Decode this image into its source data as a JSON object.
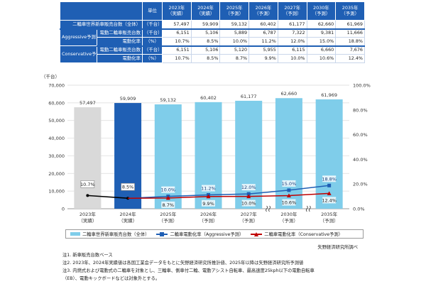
{
  "table": {
    "unit_header": "単位",
    "years": [
      "2023年\n（実績）",
      "2024年\n（実績）",
      "2025年\n（予測）",
      "2026年\n（予測）",
      "2027年\n（予測）",
      "2030年\n（予測）",
      "2035年\n（予測）"
    ],
    "rows": [
      {
        "label": "二輪車世界新車販売台数（全体）",
        "unit": "（千台）",
        "values": [
          "57,497",
          "59,909",
          "59,132",
          "60,402",
          "61,177",
          "62,660",
          "61,969"
        ]
      },
      {
        "group": "Aggressive予測",
        "label": "電動二輪車販売台数",
        "unit": "（千台）",
        "values": [
          "6,151",
          "5,106",
          "5,889",
          "6,787",
          "7,322",
          "9,381",
          "11,666"
        ]
      },
      {
        "group": "",
        "label": "電動化率",
        "unit": "（%）",
        "values": [
          "10.7%",
          "8.5%",
          "10.0%",
          "11.2%",
          "12.0%",
          "15.0%",
          "18.8%"
        ]
      },
      {
        "group": "Conservative予測",
        "label": "電動二輪車販売台数",
        "unit": "（千台）",
        "values": [
          "6,151",
          "5,106",
          "5,120",
          "5,955",
          "6,115",
          "6,660",
          "7,676"
        ]
      },
      {
        "group": "",
        "label": "電動化率",
        "unit": "（%）",
        "values": [
          "10.7%",
          "8.5%",
          "8.7%",
          "9.9%",
          "10.0%",
          "10.6%",
          "12.4%"
        ]
      }
    ]
  },
  "chart_data": {
    "type": "bar",
    "y_unit_label": "（千台）",
    "categories": [
      [
        "2023年",
        "（実績）"
      ],
      [
        "2024年",
        "（実績）"
      ],
      [
        "2025年",
        "（予測）"
      ],
      [
        "2026年",
        "（予測）"
      ],
      [
        "2027年",
        "（予測）"
      ],
      [
        "2030年",
        "（予測）"
      ],
      [
        "2035年",
        "（予測）"
      ]
    ],
    "ylim": [
      0,
      70000
    ],
    "yticks": [
      "0",
      "10,000",
      "20,000",
      "30,000",
      "40,000",
      "50,000",
      "60,000",
      "70,000"
    ],
    "y2lim": [
      0,
      100
    ],
    "y2ticks": [
      "0.0%",
      "20.0%",
      "40.0%",
      "60.0%",
      "80.0%",
      "100.0%"
    ],
    "bars": {
      "name": "二輪車世界新車販売台数（全体）",
      "values": [
        57497,
        59909,
        59132,
        60402,
        61177,
        62660,
        61969
      ],
      "labels": [
        "57,497",
        "59,909",
        "59,132",
        "60,402",
        "61,177",
        "62,660",
        "61,969"
      ],
      "colors": [
        "#d9d9d9",
        "#1f5fb4",
        "#7fcdea",
        "#7fcdea",
        "#7fcdea",
        "#7fcdea",
        "#7fcdea"
      ]
    },
    "series": [
      {
        "name": "二輪車電動化率（Aggressive予測）",
        "values": [
          10.7,
          8.5,
          10.0,
          11.2,
          12.0,
          15.0,
          18.8
        ],
        "labels": [
          "",
          "",
          "10.0%",
          "11.2%",
          "12.0%",
          "15.0%",
          "18.8%"
        ],
        "color": "#1f5fb4",
        "marker": "square"
      },
      {
        "name": "二輪車電動化率（Conservative予測）",
        "values": [
          10.7,
          8.5,
          8.7,
          9.9,
          10.0,
          10.6,
          12.4
        ],
        "labels": [
          "",
          "",
          "8.7%",
          "9.9%",
          "10.0%",
          "10.6%",
          "12.4%"
        ],
        "color": "#c00000",
        "marker": "triangle"
      }
    ],
    "shared_labels": [
      "10.7%",
      "8.5%"
    ],
    "grid": true,
    "legend": "bottom"
  },
  "source": "矢野経済研究所調べ",
  "notes": [
    "注1. 新車販売台数ベース",
    "注2. 2023年、2024年実績値は各国工業会データをもとに矢野経済研究所推計値、2025年以降は矢野経済研究所予測値",
    "注3. 内燃式および電動式の二輪車を対象とし、三輪車、側車付二輪、電動アシスト自転車、最高速度25kph以下の電動自転車",
    "（EB）、電動キックボードなどは対象外とする。"
  ]
}
